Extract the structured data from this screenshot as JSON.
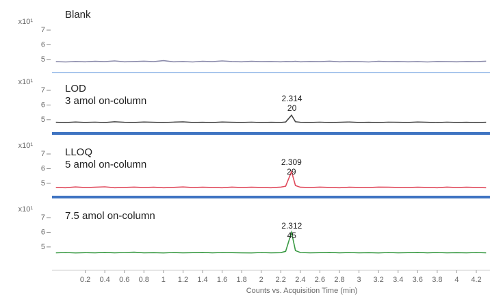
{
  "chart_data": [
    {
      "type": "line",
      "labels": [
        "Blank"
      ],
      "scale_label": "x10¹",
      "color": "#8a8aaa",
      "band_color": "#a9c6ec",
      "xlim": [
        -0.14,
        4.34
      ],
      "ylim": [
        4.2,
        7.7
      ],
      "yticks": [
        5,
        6,
        7
      ],
      "x": [
        -0.1,
        0,
        0.1,
        0.2,
        0.3,
        0.4,
        0.5,
        0.6,
        0.7,
        0.8,
        0.9,
        1,
        1.1,
        1.2,
        1.3,
        1.4,
        1.5,
        1.6,
        1.7,
        1.8,
        1.9,
        2,
        2.1,
        2.2,
        2.25,
        2.31,
        2.35,
        2.4,
        2.5,
        2.6,
        2.7,
        2.8,
        2.9,
        3,
        3.1,
        3.2,
        3.3,
        3.4,
        3.5,
        3.6,
        3.7,
        3.8,
        3.9,
        4,
        4.1,
        4.2,
        4.3
      ],
      "values": [
        4.85,
        4.83,
        4.86,
        4.84,
        4.87,
        4.85,
        4.9,
        4.84,
        4.86,
        4.88,
        4.85,
        4.92,
        4.84,
        4.86,
        4.83,
        4.87,
        4.85,
        4.9,
        4.86,
        4.84,
        4.87,
        4.85,
        4.86,
        4.84,
        4.86,
        4.85,
        4.87,
        4.84,
        4.86,
        4.85,
        4.88,
        4.84,
        4.86,
        4.85,
        4.83,
        4.87,
        4.85,
        4.86,
        4.84,
        4.85,
        4.83,
        4.86,
        4.85,
        4.84,
        4.86,
        4.85,
        4.88
      ]
    },
    {
      "type": "line",
      "labels": [
        "LOD",
        "3 amol on-column"
      ],
      "scale_label": "x10¹",
      "color": "#444444",
      "band_color": "#3f74c2",
      "peak_labels": [
        2.314,
        20
      ],
      "xlim": [
        -0.14,
        4.34
      ],
      "ylim": [
        4.2,
        7.7
      ],
      "yticks": [
        5,
        6,
        7
      ],
      "x": [
        -0.1,
        0,
        0.1,
        0.2,
        0.3,
        0.4,
        0.5,
        0.6,
        0.7,
        0.8,
        0.9,
        1,
        1.1,
        1.2,
        1.3,
        1.4,
        1.5,
        1.6,
        1.7,
        1.8,
        1.9,
        2,
        2.1,
        2.2,
        2.25,
        2.31,
        2.35,
        2.4,
        2.5,
        2.6,
        2.7,
        2.8,
        2.9,
        3,
        3.1,
        3.2,
        3.3,
        3.4,
        3.5,
        3.6,
        3.7,
        3.8,
        3.9,
        4,
        4.1,
        4.2,
        4.3
      ],
      "values": [
        4.82,
        4.8,
        4.84,
        4.81,
        4.83,
        4.8,
        4.86,
        4.82,
        4.81,
        4.84,
        4.82,
        4.8,
        4.83,
        4.85,
        4.81,
        4.82,
        4.8,
        4.84,
        4.82,
        4.81,
        4.83,
        4.8,
        4.82,
        4.81,
        4.84,
        5.3,
        4.86,
        4.82,
        4.81,
        4.83,
        4.8,
        4.82,
        4.84,
        4.81,
        4.82,
        4.8,
        4.83,
        4.82,
        4.81,
        4.84,
        4.82,
        4.8,
        4.83,
        4.81,
        4.82,
        4.8,
        4.82
      ]
    },
    {
      "type": "line",
      "labels": [
        "LLOQ",
        "5 amol on-column"
      ],
      "scale_label": "x10¹",
      "color": "#e04a5c",
      "band_color": "#3f74c2",
      "peak_labels": [
        2.309,
        29
      ],
      "xlim": [
        -0.14,
        4.34
      ],
      "ylim": [
        4.2,
        7.7
      ],
      "yticks": [
        5,
        6,
        7
      ],
      "x": [
        -0.1,
        0,
        0.1,
        0.2,
        0.3,
        0.4,
        0.5,
        0.6,
        0.7,
        0.8,
        0.9,
        1,
        1.1,
        1.2,
        1.3,
        1.4,
        1.5,
        1.6,
        1.7,
        1.8,
        1.9,
        2,
        2.1,
        2.2,
        2.25,
        2.31,
        2.35,
        2.4,
        2.5,
        2.6,
        2.7,
        2.8,
        2.9,
        3,
        3.1,
        3.2,
        3.3,
        3.4,
        3.5,
        3.6,
        3.7,
        3.8,
        3.9,
        4,
        4.1,
        4.2,
        4.3
      ],
      "values": [
        4.72,
        4.7,
        4.75,
        4.71,
        4.73,
        4.76,
        4.7,
        4.72,
        4.74,
        4.71,
        4.73,
        4.7,
        4.72,
        4.75,
        4.71,
        4.73,
        4.72,
        4.7,
        4.74,
        4.71,
        4.73,
        4.72,
        4.7,
        4.74,
        4.8,
        5.8,
        4.85,
        4.73,
        4.71,
        4.74,
        4.72,
        4.7,
        4.73,
        4.72,
        4.71,
        4.74,
        4.73,
        4.72,
        4.71,
        4.73,
        4.72,
        4.7,
        4.74,
        4.71,
        4.73,
        4.72,
        4.7
      ]
    },
    {
      "type": "line",
      "labels": [
        "7.5 amol on-column"
      ],
      "scale_label": "x10¹",
      "color": "#3a9a44",
      "peak_labels": [
        2.312,
        45
      ],
      "xlim": [
        -0.14,
        4.34
      ],
      "ylim": [
        4.2,
        7.7
      ],
      "yticks": [
        5,
        6,
        7
      ],
      "xticks": [
        0.2,
        0.4,
        0.6,
        0.8,
        1,
        1.2,
        1.4,
        1.6,
        1.8,
        2,
        2.2,
        2.4,
        2.6,
        2.8,
        3,
        3.2,
        3.4,
        3.6,
        3.8,
        4,
        4.2
      ],
      "xlabel": "Counts vs. Acquisition Time (min)",
      "x": [
        -0.1,
        0,
        0.1,
        0.2,
        0.3,
        0.4,
        0.5,
        0.6,
        0.7,
        0.8,
        0.9,
        1,
        1.1,
        1.2,
        1.3,
        1.4,
        1.5,
        1.6,
        1.7,
        1.8,
        1.9,
        2,
        2.1,
        2.2,
        2.25,
        2.31,
        2.35,
        2.4,
        2.5,
        2.6,
        2.7,
        2.8,
        2.9,
        3,
        3.1,
        3.2,
        3.3,
        3.4,
        3.5,
        3.6,
        3.7,
        3.8,
        3.9,
        4,
        4.1,
        4.2,
        4.3
      ],
      "values": [
        4.6,
        4.62,
        4.59,
        4.61,
        4.6,
        4.63,
        4.6,
        4.62,
        4.64,
        4.6,
        4.61,
        4.59,
        4.62,
        4.6,
        4.61,
        4.63,
        4.6,
        4.62,
        4.61,
        4.6,
        4.59,
        4.62,
        4.6,
        4.61,
        4.7,
        6.0,
        4.75,
        4.62,
        4.6,
        4.61,
        4.63,
        4.6,
        4.62,
        4.6,
        4.61,
        4.59,
        4.62,
        4.6,
        4.61,
        4.63,
        4.6,
        4.62,
        4.6,
        4.61,
        4.6,
        4.62,
        4.6
      ]
    }
  ]
}
